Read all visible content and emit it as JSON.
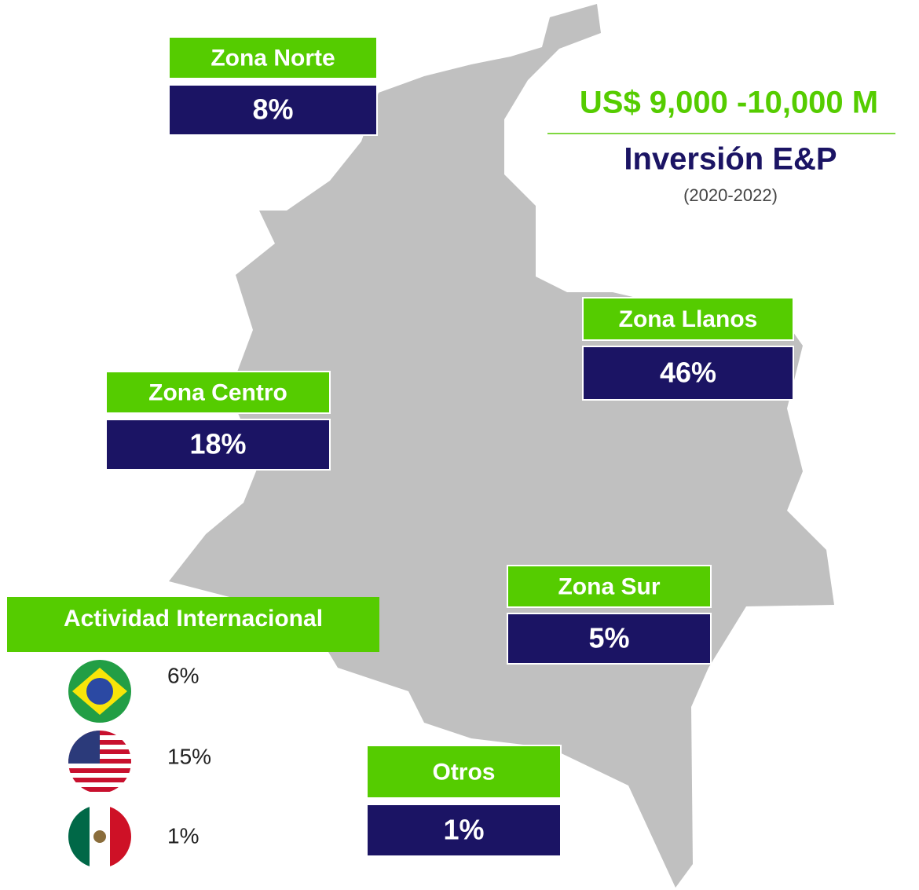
{
  "header": {
    "amount": "US$ 9,000 -10,000 M",
    "title": "Inversión E&P",
    "period": "(2020-2022)"
  },
  "zones": [
    {
      "name": "Zona Norte",
      "share": "8%"
    },
    {
      "name": "Zona Centro",
      "share": "18%"
    },
    {
      "name": "Zona Llanos",
      "share": "46%"
    },
    {
      "name": "Zona Sur",
      "share": "5%"
    },
    {
      "name": "Otros",
      "share": "1%"
    }
  ],
  "international": {
    "title": "Actividad Internacional",
    "shares": [
      "6%",
      "15%",
      "1%"
    ]
  }
}
